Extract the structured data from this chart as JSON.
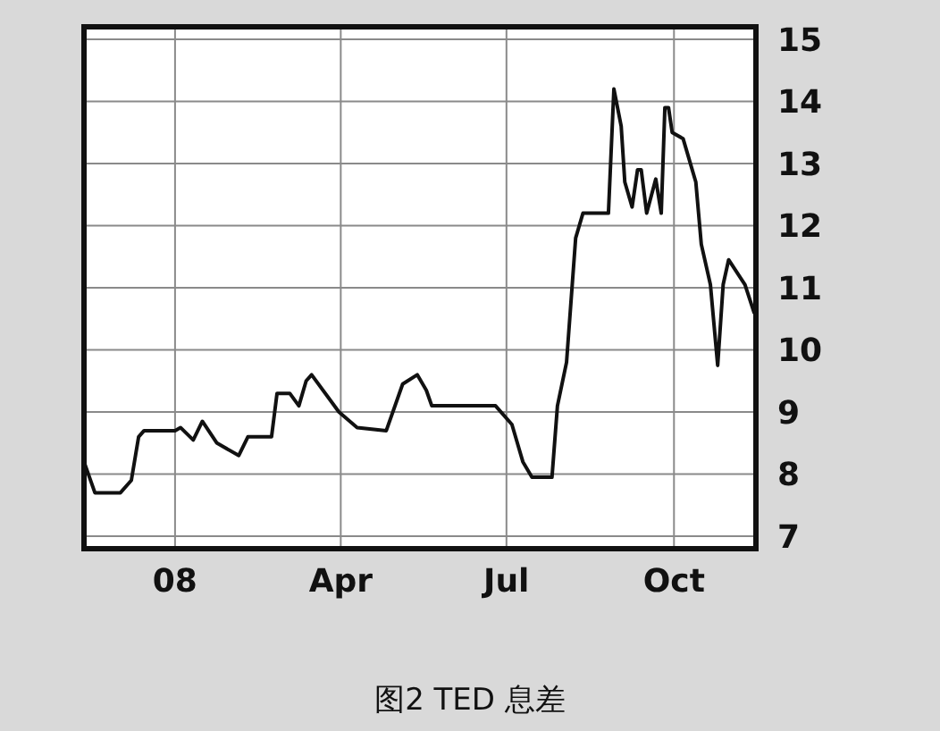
{
  "chart_data": {
    "type": "line",
    "title": "图2 TED 息差",
    "x": [
      "2007-11-12",
      "2007-11-18",
      "2007-12-02",
      "2007-12-08",
      "2007-12-12",
      "2007-12-15",
      "2008-01-01",
      "2008-01-04",
      "2008-01-11",
      "2008-01-16",
      "2008-01-24",
      "2008-02-05",
      "2008-02-10",
      "2008-02-23",
      "2008-02-26",
      "2008-03-04",
      "2008-03-09",
      "2008-03-13",
      "2008-03-16",
      "2008-03-31",
      "2008-04-10",
      "2008-04-26",
      "2008-05-05",
      "2008-05-13",
      "2008-05-18",
      "2008-05-21",
      "2008-06-22",
      "2008-06-25",
      "2008-07-04",
      "2008-07-10",
      "2008-07-15",
      "2008-07-26",
      "2008-07-29",
      "2008-08-03",
      "2008-08-08",
      "2008-08-12",
      "2008-08-26",
      "2008-08-29",
      "2008-09-02",
      "2008-09-04",
      "2008-09-08",
      "2008-09-11",
      "2008-09-13",
      "2008-09-16",
      "2008-09-21",
      "2008-09-24",
      "2008-09-26",
      "2008-09-28",
      "2008-09-30",
      "2008-10-06",
      "2008-10-11",
      "2008-10-13",
      "2008-10-16",
      "2008-10-21",
      "2008-10-25",
      "2008-10-28",
      "2008-10-31",
      "2008-11-09",
      "2008-11-14"
    ],
    "series": [
      {
        "color": "#111111",
        "values": [
          8.2,
          7.7,
          7.7,
          7.9,
          8.6,
          8.7,
          8.7,
          8.75,
          8.55,
          8.85,
          8.5,
          8.3,
          8.6,
          8.6,
          9.3,
          9.3,
          9.1,
          9.5,
          9.6,
          9.0,
          8.75,
          8.7,
          9.45,
          9.6,
          9.35,
          9.1,
          9.1,
          9.1,
          8.8,
          8.2,
          7.95,
          7.95,
          9.1,
          9.8,
          11.8,
          12.2,
          12.2,
          14.2,
          13.6,
          12.7,
          12.3,
          12.9,
          12.9,
          12.2,
          12.75,
          12.2,
          13.9,
          13.9,
          13.5,
          13.4,
          12.9,
          12.7,
          11.7,
          11.05,
          9.75,
          11.05,
          11.45,
          11.05,
          10.6
        ]
      }
    ],
    "xlim": [
      "2007-11-12",
      "2008-11-15"
    ],
    "xticks": [
      {
        "value": "2008-01-01",
        "label": "08"
      },
      {
        "value": "2008-04-01",
        "label": "Apr"
      },
      {
        "value": "2008-07-01",
        "label": "Jul"
      },
      {
        "value": "2008-10-01",
        "label": "Oct"
      }
    ],
    "ylim": [
      6.8,
      15.2
    ],
    "yticks": [
      7,
      8,
      9,
      10,
      11,
      12,
      13,
      14,
      15
    ],
    "grid": true,
    "marker": "none",
    "line_style": "solid"
  }
}
